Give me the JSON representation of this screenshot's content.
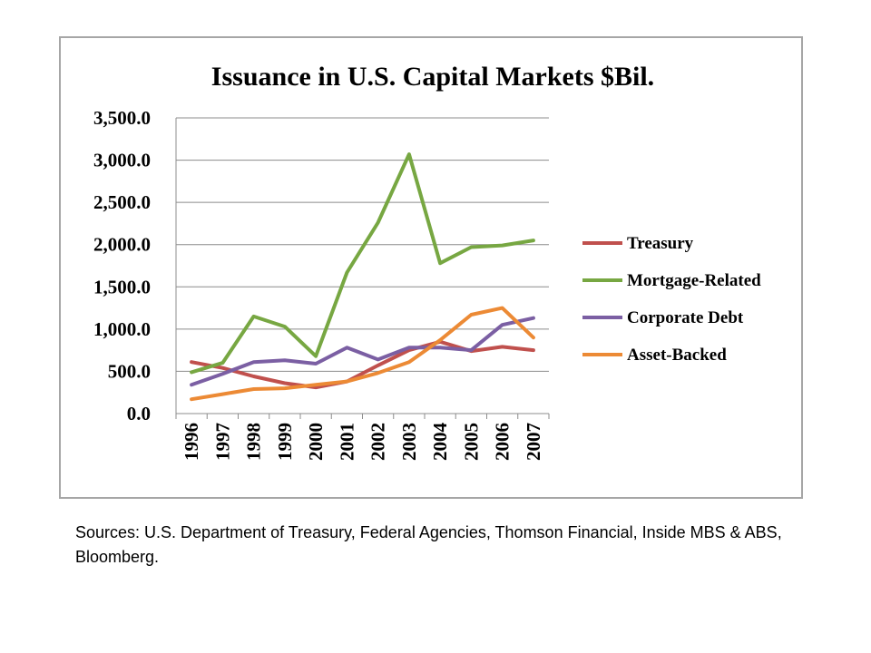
{
  "chart_data": {
    "type": "line",
    "title": "Issuance in U.S. Capital Markets $Bil.",
    "xlabel": "",
    "ylabel": "",
    "categories": [
      "1996",
      "1997",
      "1998",
      "1999",
      "2000",
      "2001",
      "2002",
      "2003",
      "2004",
      "2005",
      "2006",
      "2007"
    ],
    "ylim": [
      0,
      3500
    ],
    "yticks": [
      0,
      500,
      1000,
      1500,
      2000,
      2500,
      3000,
      3500
    ],
    "ytick_labels": [
      "0.0",
      "500.0",
      "1,000.0",
      "1,500.0",
      "2,000.0",
      "2,500.0",
      "3,000.0",
      "3,500.0"
    ],
    "grid": "horizontal",
    "legend_position": "right",
    "series": [
      {
        "name": "Treasury",
        "color": "#c0504d",
        "values": [
          610,
          540,
          440,
          360,
          310,
          380,
          570,
          750,
          850,
          740,
          790,
          750
        ]
      },
      {
        "name": "Mortgage-Related",
        "color": "#77a742",
        "values": [
          490,
          600,
          1150,
          1030,
          680,
          1670,
          2260,
          3070,
          1780,
          1970,
          1990,
          2050
        ]
      },
      {
        "name": "Corporate Debt",
        "color": "#7b5fa3",
        "values": [
          340,
          470,
          610,
          630,
          590,
          780,
          640,
          780,
          780,
          750,
          1050,
          1130
        ]
      },
      {
        "name": "Asset-Backed",
        "color": "#ec8a35",
        "values": [
          170,
          230,
          290,
          300,
          340,
          380,
          480,
          610,
          870,
          1170,
          1250,
          900
        ]
      }
    ]
  },
  "source_note": "Sources: U.S. Department of Treasury, Federal Agencies, Thomson Financial, Inside MBS & ABS, Bloomberg."
}
